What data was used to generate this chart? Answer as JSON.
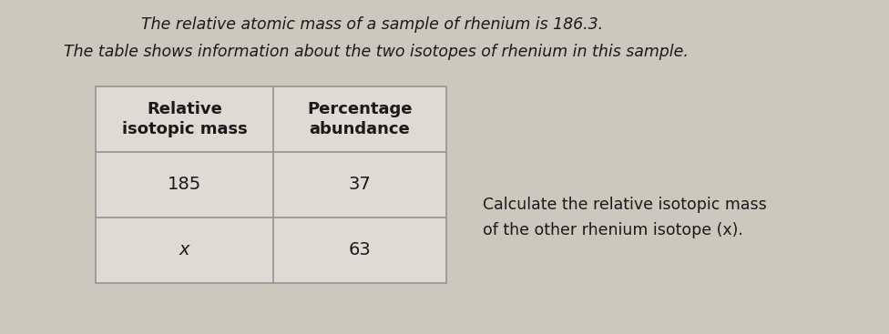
{
  "line1": "The relative atomic mass of a sample of rhenium is 186.3.",
  "line2": "The table shows information about the two isotopes of rhenium in this sample.",
  "col1_header_line1": "Relative",
  "col1_header_line2": "isotopic mass",
  "col2_header_line1": "Percentage",
  "col2_header_line2": "abundance",
  "row1_col1": "185",
  "row1_col2": "37",
  "row2_col1": "x",
  "row2_col2": "63",
  "side_text_line1": "Calculate the relative isotopic mass",
  "side_text_line2": "of the other rhenium isotope (x).",
  "bg_color": "#ccc8be",
  "table_bg": "#dedad4",
  "text_color": "#1a1a1a",
  "border_color": "#999999",
  "fig_width": 9.76,
  "fig_height": 3.67,
  "dpi": 100
}
